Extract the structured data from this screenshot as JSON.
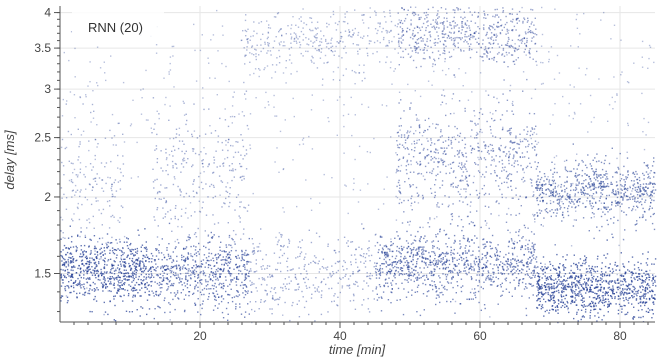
{
  "chart_data": {
    "type": "scatter",
    "legend": "RNN (20)",
    "legend_placement": "top-left",
    "xlabel": "time [min]",
    "ylabel": "delay [ms]",
    "xlim": [
      0,
      85
    ],
    "ylim": [
      1.25,
      4.1
    ],
    "y_scale": "log",
    "grid": true,
    "point_color": "#1f3a93",
    "x_ticks": [
      {
        "value": 20,
        "label": "20"
      },
      {
        "value": 40,
        "label": "40"
      },
      {
        "value": 60,
        "label": "60"
      },
      {
        "value": 80,
        "label": "80"
      }
    ],
    "y_ticks": [
      {
        "value": 1.5,
        "label": "1.5"
      },
      {
        "value": 2,
        "label": "2"
      },
      {
        "value": 2.5,
        "label": "2.5"
      },
      {
        "value": 3,
        "label": "3"
      },
      {
        "value": 3.5,
        "label": "3.5"
      },
      {
        "value": 4,
        "label": "4"
      }
    ],
    "series": [
      {
        "name": "RNN (20)",
        "density_bands": [
          {
            "x_start": 0,
            "x_end": 13,
            "y_center": 1.52,
            "y_spread": 0.09,
            "weight": 1.0
          },
          {
            "x_start": 13,
            "x_end": 27,
            "y_center": 1.5,
            "y_spread": 0.1,
            "weight": 0.8
          },
          {
            "x_start": 27,
            "x_end": 45,
            "y_center": 1.5,
            "y_spread": 0.12,
            "weight": 0.35
          },
          {
            "x_start": 45,
            "x_end": 68,
            "y_center": 1.55,
            "y_spread": 0.1,
            "weight": 0.75
          },
          {
            "x_start": 68,
            "x_end": 85,
            "y_center": 1.42,
            "y_spread": 0.08,
            "weight": 1.0
          },
          {
            "x_start": 68,
            "x_end": 85,
            "y_center": 2.05,
            "y_spread": 0.12,
            "weight": 0.7
          },
          {
            "x_start": 48,
            "x_end": 68,
            "y_center": 2.3,
            "y_spread": 0.25,
            "weight": 0.55
          },
          {
            "x_start": 48,
            "x_end": 68,
            "y_center": 3.7,
            "y_spread": 0.2,
            "weight": 0.5
          },
          {
            "x_start": 26,
            "x_end": 48,
            "y_center": 3.6,
            "y_spread": 0.2,
            "weight": 0.25
          },
          {
            "x_start": 13,
            "x_end": 27,
            "y_center": 2.2,
            "y_spread": 0.3,
            "weight": 0.35
          },
          {
            "x_start": 0,
            "x_end": 9,
            "y_center": 2.1,
            "y_spread": 0.3,
            "weight": 0.3
          },
          {
            "x_start": 0,
            "x_end": 85,
            "y_center": 2.6,
            "y_spread": 0.9,
            "weight": 0.15
          }
        ]
      }
    ]
  }
}
